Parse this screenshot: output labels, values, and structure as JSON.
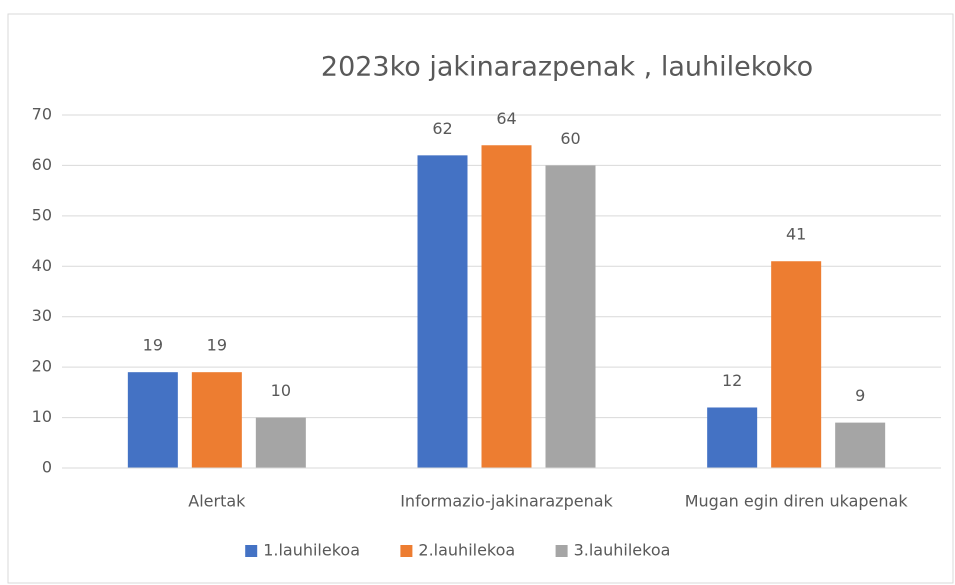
{
  "chart_data": {
    "type": "bar",
    "title": "2023ko jakinarazpenak , lauhilekoko",
    "categories": [
      "Alertak",
      "Informazio-jakinarazpenak",
      "Mugan egin diren ukapenak"
    ],
    "series": [
      {
        "name": "1.lauhilekoa",
        "color": "#4472c4",
        "values": [
          19,
          62,
          12
        ]
      },
      {
        "name": "2.lauhilekoa",
        "color": "#ed7d31",
        "values": [
          19,
          64,
          41
        ]
      },
      {
        "name": "3.lauhilekoa",
        "color": "#a5a5a5",
        "values": [
          10,
          60,
          9
        ]
      }
    ],
    "ylim": [
      0,
      70
    ],
    "yticks": [
      0,
      10,
      20,
      30,
      40,
      50,
      60,
      70
    ],
    "grid": true,
    "legend": "bottom"
  }
}
